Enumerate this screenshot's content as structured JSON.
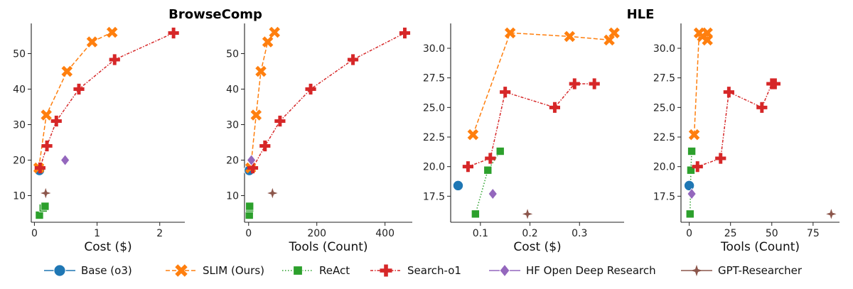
{
  "titles": {
    "browsecomp": "BrowseComp",
    "hle": "HLE"
  },
  "series_styles": {
    "base": {
      "name": "Base (o3)",
      "color": "#1f77b4",
      "marker": "circle",
      "dash": "solid"
    },
    "slim": {
      "name": "SLIM (Ours)",
      "color": "#ff7f0e",
      "marker": "x",
      "dash": "dashed"
    },
    "react": {
      "name": "ReAct",
      "color": "#2ca02c",
      "marker": "square",
      "dash": "dotted"
    },
    "search": {
      "name": "Search-o1",
      "color": "#d62728",
      "marker": "plus",
      "dash": "dashdot"
    },
    "hf": {
      "name": "HF Open Deep Research",
      "color": "#9467bd",
      "marker": "diamond",
      "dash": "solid"
    },
    "gpt": {
      "name": "GPT-Researcher",
      "color": "#8c564b",
      "marker": "star4",
      "dash": "solid"
    }
  },
  "legend": {
    "position": "bottom",
    "entries": [
      "Base (o3)",
      "SLIM (Ours)",
      "ReAct",
      "Search-o1",
      "HF Open Deep Research",
      "GPT-Researcher"
    ]
  },
  "chart_data": [
    {
      "type": "line",
      "group_title": "BrowseComp",
      "xlabel": "Cost ($)",
      "ylabel": "",
      "xlim": [
        -0.05,
        2.4
      ],
      "ylim": [
        2.5,
        58.5
      ],
      "xticks": [
        0,
        1,
        2
      ],
      "xtick_labels": [
        "0",
        "1",
        "2"
      ],
      "yticks": [
        10,
        20,
        30,
        40,
        50
      ],
      "ytick_labels": [
        "10",
        "20",
        "30",
        "40",
        "50"
      ],
      "series": [
        {
          "key": "base",
          "x": [
            0.08
          ],
          "y": [
            17.1
          ]
        },
        {
          "key": "slim",
          "x": [
            0.07,
            0.19,
            0.52,
            0.92,
            1.24
          ],
          "y": [
            17.8,
            32.7,
            45.0,
            53.3,
            56.0
          ]
        },
        {
          "key": "react",
          "x": [
            0.08,
            0.14,
            0.17
          ],
          "y": [
            4.5,
            6.5,
            7.0
          ]
        },
        {
          "key": "search",
          "x": [
            0.09,
            0.2,
            0.35,
            0.71,
            1.28,
            2.22
          ],
          "y": [
            17.8,
            24.0,
            31.0,
            40.0,
            48.3,
            55.8
          ]
        },
        {
          "key": "hf",
          "x": [
            0.49
          ],
          "y": [
            20.0
          ]
        },
        {
          "key": "gpt",
          "x": [
            0.18
          ],
          "y": [
            10.7
          ]
        }
      ]
    },
    {
      "type": "line",
      "group_title": "BrowseComp",
      "xlabel": "Tools (Count)",
      "ylabel": "",
      "xlim": [
        -12,
        480
      ],
      "ylim": [
        2.5,
        58.5
      ],
      "xticks": [
        0,
        200,
        400
      ],
      "xtick_labels": [
        "0",
        "200",
        "400"
      ],
      "yticks": [
        10,
        20,
        30,
        40,
        50
      ],
      "ytick_labels": [
        "10",
        "20",
        "30",
        "40",
        "50"
      ],
      "series": [
        {
          "key": "base",
          "x": [
            2
          ],
          "y": [
            17.1
          ]
        },
        {
          "key": "slim",
          "x": [
            6,
            22,
            36,
            56,
            76
          ],
          "y": [
            17.8,
            32.7,
            45.0,
            53.3,
            56.0
          ]
        },
        {
          "key": "react",
          "x": [
            2,
            3,
            3
          ],
          "y": [
            4.5,
            6.5,
            7.0
          ]
        },
        {
          "key": "search",
          "x": [
            12,
            48,
            92,
            182,
            306,
            458
          ],
          "y": [
            17.8,
            24.0,
            31.0,
            40.0,
            48.3,
            55.8
          ]
        },
        {
          "key": "hf",
          "x": [
            8
          ],
          "y": [
            20.0
          ]
        },
        {
          "key": "gpt",
          "x": [
            70
          ],
          "y": [
            10.7
          ]
        }
      ]
    },
    {
      "type": "line",
      "group_title": "HLE",
      "xlabel": "Cost ($)",
      "ylabel": "",
      "xlim": [
        0.04,
        0.39
      ],
      "ylim": [
        15.3,
        32.1
      ],
      "xticks": [
        0.1,
        0.2,
        0.3
      ],
      "xtick_labels": [
        "0.1",
        "0.2",
        "0.3"
      ],
      "yticks": [
        17.5,
        20.0,
        22.5,
        25.0,
        27.5,
        30.0
      ],
      "ytick_labels": [
        "17.5",
        "20.0",
        "22.5",
        "25.0",
        "27.5",
        "30.0"
      ],
      "series": [
        {
          "key": "base",
          "x": [
            0.055
          ],
          "y": [
            18.4
          ]
        },
        {
          "key": "slim",
          "x": [
            0.085,
            0.16,
            0.28,
            0.36,
            0.37
          ],
          "y": [
            22.7,
            31.3,
            31.0,
            30.7,
            31.3
          ]
        },
        {
          "key": "react",
          "x": [
            0.09,
            0.115,
            0.14
          ],
          "y": [
            16.0,
            19.7,
            21.3
          ]
        },
        {
          "key": "search",
          "x": [
            0.075,
            0.12,
            0.15,
            0.25,
            0.29,
            0.33
          ],
          "y": [
            20.0,
            20.7,
            26.3,
            25.0,
            27.0,
            27.0
          ]
        },
        {
          "key": "hf",
          "x": [
            0.125
          ],
          "y": [
            17.7
          ]
        },
        {
          "key": "gpt",
          "x": [
            0.195
          ],
          "y": [
            16.0
          ]
        }
      ]
    },
    {
      "type": "line",
      "group_title": "HLE",
      "xlabel": "Tools (Count)",
      "ylabel": "",
      "xlim": [
        -5,
        91
      ],
      "ylim": [
        15.3,
        32.1
      ],
      "xticks": [
        0,
        25,
        50,
        75
      ],
      "xtick_labels": [
        "0",
        "25",
        "50",
        "75"
      ],
      "yticks": [
        17.5,
        20.0,
        22.5,
        25.0,
        27.5,
        30.0
      ],
      "ytick_labels": [
        "17.5",
        "20.0",
        "22.5",
        "25.0",
        "27.5",
        "30.0"
      ],
      "series": [
        {
          "key": "base",
          "x": [
            0
          ],
          "y": [
            18.4
          ]
        },
        {
          "key": "slim",
          "x": [
            3,
            6,
            8,
            11,
            11
          ],
          "y": [
            22.7,
            31.3,
            31.0,
            30.7,
            31.3
          ]
        },
        {
          "key": "react",
          "x": [
            0.5,
            1,
            1.5
          ],
          "y": [
            16.0,
            19.7,
            21.3
          ]
        },
        {
          "key": "search",
          "x": [
            5,
            19,
            24,
            44,
            50,
            52
          ],
          "y": [
            20.0,
            20.7,
            26.3,
            25.0,
            27.0,
            27.0
          ]
        },
        {
          "key": "hf",
          "x": [
            1.5
          ],
          "y": [
            17.7
          ]
        },
        {
          "key": "gpt",
          "x": [
            86
          ],
          "y": [
            16.0
          ]
        }
      ]
    }
  ]
}
